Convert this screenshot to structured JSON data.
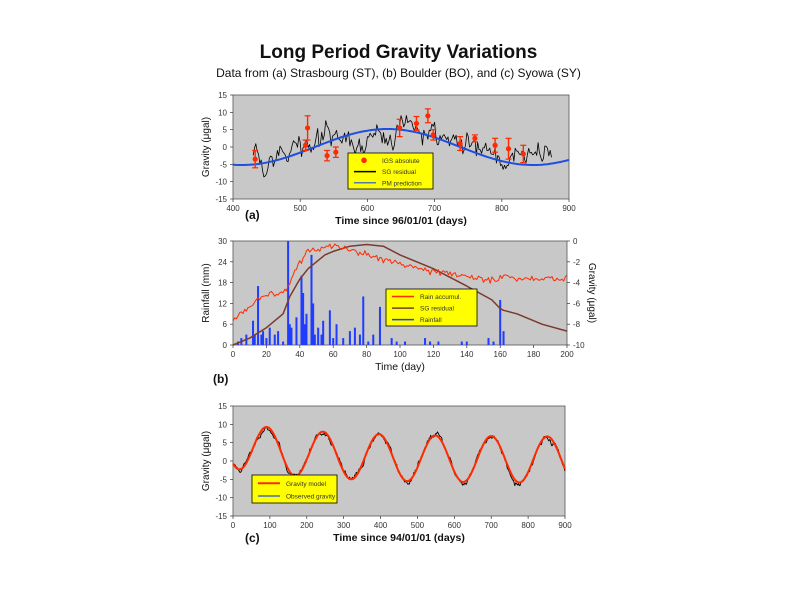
{
  "figure": {
    "title": "Long Period Gravity Variations",
    "subtitle": "Data from (a) Strasbourg (ST), (b) Boulder (BO), and (c) Syowa (SY)"
  },
  "colors": {
    "panel_bg": "#c8c8c8",
    "black": "#000000",
    "red": "#ff2a00",
    "blue": "#1f4fe0",
    "brown": "#7a3a2e",
    "rain_blue": "#1f3cff",
    "legend_bg": "#ffff00"
  },
  "chart_data": [
    {
      "id": "a",
      "type": "line",
      "panel_label": "(a)",
      "xlabel": "Time since 96/01/01 (days)",
      "ylabel": "Gravity (μgal)",
      "xlim": [
        400,
        900
      ],
      "ylim": [
        -15,
        15
      ],
      "xticks": [
        400,
        500,
        600,
        700,
        800,
        900
      ],
      "yticks": [
        15,
        10,
        5,
        0,
        -5,
        -10,
        -15
      ],
      "legend": [
        "IGS absolute",
        "SG residual",
        "PM prediction"
      ],
      "model": {
        "name": "PM prediction",
        "amplitude": 5.2,
        "period": 433,
        "peak_x": 630
      },
      "residual": {
        "name": "SG residual",
        "x_start": 430,
        "x_end": 875,
        "step": 2,
        "seed": 7
      },
      "absolute": {
        "name": "IGS absolute",
        "points": [
          {
            "x": 433,
            "y": -3.5,
            "err": 2.5
          },
          {
            "x": 508,
            "y": 0.5,
            "err": 1.5
          },
          {
            "x": 511,
            "y": 5.5,
            "err": 3.5
          },
          {
            "x": 540,
            "y": -2.5,
            "err": 1.5
          },
          {
            "x": 553,
            "y": -1.5,
            "err": 1.5
          },
          {
            "x": 648,
            "y": 5.5,
            "err": 2.5
          },
          {
            "x": 673,
            "y": 6.8,
            "err": 2.0
          },
          {
            "x": 690,
            "y": 9.0,
            "err": 2.0
          },
          {
            "x": 698,
            "y": 3.5,
            "err": 1.5
          },
          {
            "x": 738,
            "y": 1.0,
            "err": 2.0
          },
          {
            "x": 760,
            "y": 2.5,
            "err": 1.0
          },
          {
            "x": 790,
            "y": 0.5,
            "err": 2.0
          },
          {
            "x": 810,
            "y": -0.5,
            "err": 3.0
          },
          {
            "x": 832,
            "y": -2.0,
            "err": 2.5
          }
        ]
      }
    },
    {
      "id": "b",
      "type": "line",
      "panel_label": "(b)",
      "xlabel": "Time (day)",
      "ylabel_left": "Rainfall (mm)",
      "ylabel_right": "Gravity (μgal)",
      "xlim": [
        0,
        200
      ],
      "ylim_left": [
        0,
        30
      ],
      "ylim_right": [
        -10,
        0
      ],
      "xticks": [
        0,
        20,
        40,
        60,
        80,
        100,
        120,
        140,
        160,
        180,
        200
      ],
      "yticks_left": [
        30,
        24,
        18,
        12,
        6,
        0
      ],
      "yticks_right": [
        0,
        -2,
        -4,
        -6,
        -8,
        -10
      ],
      "legend": [
        "Rain accumul.",
        "SG residual",
        "Rainfall"
      ],
      "series": [
        {
          "name": "Rain accumul.",
          "x": [
            0,
            10,
            20,
            30,
            34,
            40,
            45,
            50,
            55,
            60,
            70,
            80,
            90,
            100,
            110,
            120,
            140,
            155,
            160,
            162,
            170,
            185,
            200
          ],
          "y": [
            0,
            2,
            5,
            9,
            14,
            19,
            22,
            24,
            26,
            27,
            28.5,
            29,
            28.5,
            26,
            24,
            22,
            17,
            13,
            10.5,
            10,
            9,
            6,
            4
          ]
        },
        {
          "name": "SG residual",
          "x": [
            0,
            5,
            10,
            15,
            20,
            25,
            30,
            33,
            35,
            40,
            45,
            50,
            55,
            60,
            70,
            80,
            90,
            100,
            110,
            120,
            130,
            140,
            150,
            158,
            160,
            165,
            170,
            180,
            190,
            200
          ],
          "y": [
            7,
            9,
            11,
            13.5,
            14.5,
            15,
            15.5,
            17,
            20,
            24,
            27,
            27.5,
            28.5,
            28.5,
            27.5,
            26,
            25,
            23.5,
            22.5,
            21.5,
            20.5,
            19.5,
            19,
            18.5,
            20,
            20,
            19,
            19.5,
            19,
            19.5
          ]
        },
        {
          "name": "Rainfall",
          "type": "bar",
          "days": [
            3,
            5,
            8,
            12,
            13,
            15,
            17,
            18,
            20,
            22,
            25,
            27,
            30,
            33,
            34,
            35,
            38,
            41,
            42,
            43,
            44,
            47,
            48,
            49,
            51,
            53,
            54,
            58,
            60,
            62,
            66,
            70,
            73,
            76,
            78,
            81,
            84,
            88,
            95,
            98,
            103,
            115,
            118,
            123,
            137,
            140,
            153,
            156,
            160,
            162
          ],
          "values": [
            1,
            2,
            3,
            7,
            3,
            17,
            3,
            4,
            2,
            5,
            3,
            4,
            1,
            30,
            6,
            5,
            8,
            20,
            15,
            6,
            9,
            26,
            12,
            3,
            5,
            3,
            7,
            10,
            2,
            6,
            2,
            4,
            5,
            3,
            14,
            1,
            3,
            11,
            2,
            1,
            1,
            2,
            1,
            1,
            1,
            1,
            2,
            1,
            13,
            4
          ]
        }
      ]
    },
    {
      "id": "c",
      "type": "line",
      "panel_label": "(c)",
      "xlabel": "Time since 94/01/01 (days)",
      "ylabel": "Gravity (μgal)",
      "xlim": [
        0,
        900
      ],
      "ylim": [
        -15,
        15
      ],
      "xticks": [
        0,
        100,
        200,
        300,
        400,
        500,
        600,
        700,
        800,
        900
      ],
      "yticks": [
        15,
        10,
        5,
        0,
        -5,
        -10,
        -15
      ],
      "legend": [
        "Gravity model",
        "Observed gravity"
      ],
      "model": {
        "name": "Gravity model",
        "baseline": 0.3,
        "amplitude": 6.0,
        "period": 120,
        "peak_x": 95,
        "drift": 5.5,
        "drift_tau": 230,
        "seed": 3
      },
      "observed": {
        "name": "Observed gravity",
        "x_start": 2,
        "x_end": 900,
        "step": 2,
        "seed": 11
      }
    }
  ]
}
